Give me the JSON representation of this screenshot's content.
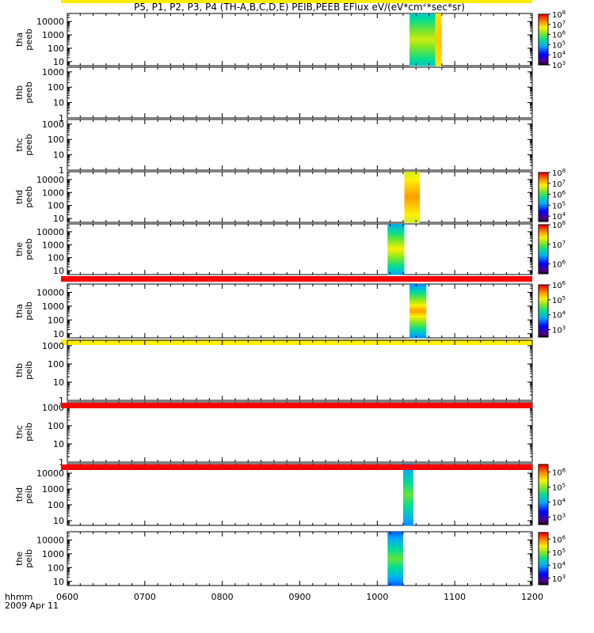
{
  "title": "P5, P1, P2, P3, P4 (TH-A,B,C,D,E) PEIB,PEEB EFlux eV/(eV*cm",
  "title_sup": "2",
  "title_tail": "*sec*sr)",
  "footer": {
    "label": "hhmm",
    "date": "2009 Apr 11"
  },
  "chart_data": {
    "type": "heatmap",
    "title": "P5, P1, P2, P3, P4 (TH-A,B,C,D,E) PEIB,PEEB EFlux eV/(eV*cm2*sec*sr)",
    "x_ticks": [
      "0600",
      "0700",
      "0800",
      "0900",
      "1000",
      "1100",
      "1200"
    ],
    "x_range": [
      "0600",
      "1200"
    ],
    "panels": [
      {
        "probe": "tha",
        "product": "peeb",
        "y_ticks": [
          "10",
          "100",
          "1000",
          "10000"
        ],
        "ylim": [
          5,
          40000
        ],
        "colorbar": {
          "ticks": [
            "10",
            "10",
            "10",
            "10",
            "10",
            "10"
          ],
          "exps": [
            "3",
            "4",
            "5",
            "6",
            "7",
            "8"
          ],
          "range_exp": [
            3,
            8
          ]
        },
        "data_blocks": [
          {
            "start": "1025",
            "end": "1045",
            "top_exp": 4.6,
            "bottom_exp": 0.7,
            "level": [
              0.35,
              0.7
            ]
          },
          {
            "start": "1045",
            "end": "1050",
            "top_exp": 4.6,
            "bottom_exp": 0.7,
            "level": [
              0.75,
              0.8
            ]
          }
        ],
        "quality_bar": null
      },
      {
        "probe": "thb",
        "product": "peeb",
        "y_ticks": [
          "1",
          "10",
          "100",
          "1000"
        ],
        "ylim": [
          1,
          2000
        ],
        "colorbar": null,
        "data_blocks": [],
        "quality_bar": null
      },
      {
        "probe": "thc",
        "product": "peeb",
        "y_ticks": [
          "1",
          "10",
          "100",
          "1000"
        ],
        "ylim": [
          1,
          2000
        ],
        "colorbar": null,
        "data_blocks": [],
        "quality_bar": null
      },
      {
        "probe": "thd",
        "product": "peeb",
        "y_ticks": [
          "10",
          "100",
          "1000",
          "10000"
        ],
        "ylim": [
          5,
          40000
        ],
        "colorbar": {
          "ticks": [
            "10",
            "10",
            "10",
            "10",
            "10"
          ],
          "exps": [
            "4",
            "5",
            "6",
            "7",
            "8"
          ],
          "range_exp": [
            3.5,
            8
          ]
        },
        "data_blocks": [
          {
            "start": "1021",
            "end": "1033",
            "top_exp": 4.6,
            "bottom_exp": 0.7,
            "level": [
              0.65,
              0.85
            ]
          }
        ],
        "quality_bar": null
      },
      {
        "probe": "the",
        "product": "peeb",
        "y_ticks": [
          "10",
          "100",
          "1000",
          "10000"
        ],
        "ylim": [
          5,
          40000
        ],
        "colorbar": {
          "ticks": [
            "10",
            "10",
            "10"
          ],
          "exps": [
            "6",
            "7",
            "8"
          ],
          "range_exp": [
            5.5,
            8
          ]
        },
        "data_blocks": [
          {
            "start": "1008",
            "end": "1021",
            "top_exp": 4.6,
            "bottom_exp": 0.7,
            "level": [
              0.25,
              0.75
            ]
          }
        ],
        "quality_bar": "#ff0000"
      },
      {
        "probe": "tha",
        "product": "peib",
        "y_ticks": [
          "10",
          "100",
          "1000",
          "10000"
        ],
        "ylim": [
          5,
          40000
        ],
        "colorbar": {
          "ticks": [
            "10",
            "10",
            "10",
            "10"
          ],
          "exps": [
            "3",
            "4",
            "5",
            "6"
          ],
          "range_exp": [
            2.5,
            6
          ]
        },
        "data_blocks": [
          {
            "start": "1025",
            "end": "1038",
            "top_exp": 4.6,
            "bottom_exp": 0.7,
            "level": [
              0.15,
              0.85
            ]
          }
        ],
        "quality_bar": "#ffee00"
      },
      {
        "probe": "thb",
        "product": "peib",
        "y_ticks": [
          "1",
          "10",
          "100",
          "1000"
        ],
        "ylim": [
          1,
          2000
        ],
        "colorbar": null,
        "data_blocks": [],
        "quality_bar": "#ffee00"
      },
      {
        "probe": "thc",
        "product": "peib",
        "y_ticks": [
          "1",
          "10",
          "100",
          "1000"
        ],
        "ylim": [
          1,
          2000
        ],
        "colorbar": null,
        "data_blocks": [],
        "quality_bar": "#ff0000"
      },
      {
        "probe": "thd",
        "product": "peib",
        "y_ticks": [
          "10",
          "100",
          "1000",
          "10000"
        ],
        "ylim": [
          5,
          40000
        ],
        "colorbar": {
          "ticks": [
            "10",
            "10",
            "10",
            "10"
          ],
          "exps": [
            "3",
            "4",
            "5",
            "6"
          ],
          "range_exp": [
            2.5,
            6.5
          ]
        },
        "data_blocks": [
          {
            "start": "1020",
            "end": "1028",
            "top_exp": 4.6,
            "bottom_exp": 0.7,
            "level": [
              0.25,
              0.6
            ]
          }
        ],
        "quality_bar": "#ff0000"
      },
      {
        "probe": "the",
        "product": "peib",
        "y_ticks": [
          "10",
          "100",
          "1000",
          "10000"
        ],
        "ylim": [
          5,
          40000
        ],
        "colorbar": {
          "ticks": [
            "10",
            "10",
            "10",
            "10"
          ],
          "exps": [
            "3",
            "4",
            "5",
            "6"
          ],
          "range_exp": [
            2.5,
            6.5
          ]
        },
        "data_blocks": [
          {
            "start": "1008",
            "end": "1020",
            "top_exp": 4.6,
            "bottom_exp": 0.7,
            "level": [
              0.2,
              0.6
            ]
          }
        ],
        "quality_bar": null
      }
    ]
  }
}
